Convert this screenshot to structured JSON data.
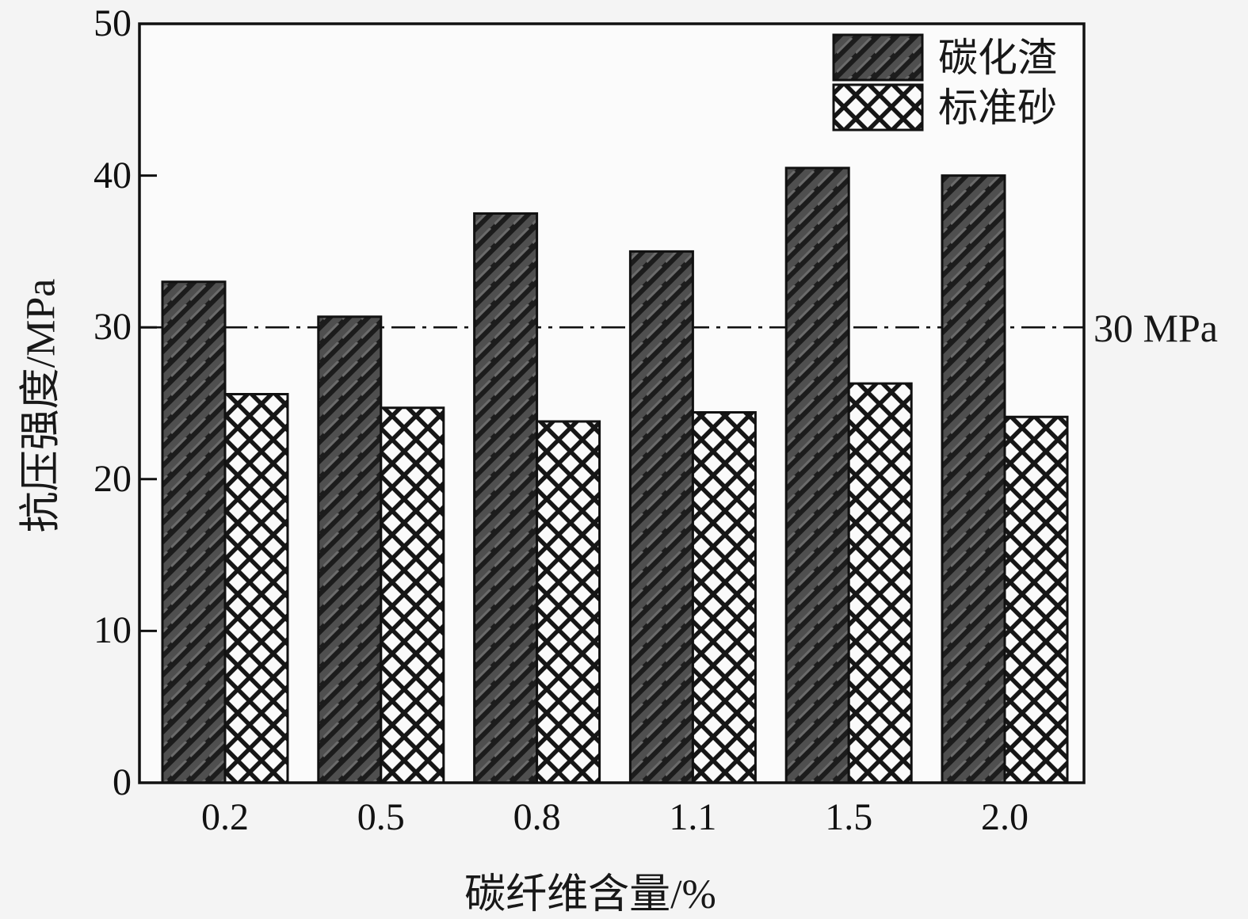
{
  "chart_data": {
    "type": "bar",
    "title": "",
    "categories": [
      "0.2",
      "0.5",
      "0.8",
      "1.1",
      "1.5",
      "2.0"
    ],
    "series": [
      {
        "name": "碳化渣",
        "pattern": "diagonal-hatch",
        "fill": "#4f4f4f",
        "values": [
          33.0,
          30.7,
          37.5,
          35.0,
          40.5,
          40.0
        ]
      },
      {
        "name": "标准砂",
        "pattern": "crosshatch",
        "fill": "#fafafa",
        "values": [
          25.6,
          24.7,
          23.8,
          24.4,
          26.3,
          24.1
        ]
      }
    ],
    "xlabel": "碳纤维含量/%",
    "ylabel": "抗压强度/MPa",
    "ylim": [
      0,
      50
    ],
    "yticks": [
      0,
      10,
      20,
      30,
      40,
      50
    ],
    "reference_line": {
      "value": 30,
      "label": "30 MPa",
      "style": "dash-dot"
    },
    "legend_position": "top-right",
    "grid": false
  },
  "colors": {
    "background": "#f4f4f4",
    "plot_background": "#fbfbfb",
    "axis": "#111111",
    "hatch_line": "#1c1c1c",
    "bar_dark_base": "#4f4f4f",
    "bar_cross_base": "#fafafa"
  }
}
